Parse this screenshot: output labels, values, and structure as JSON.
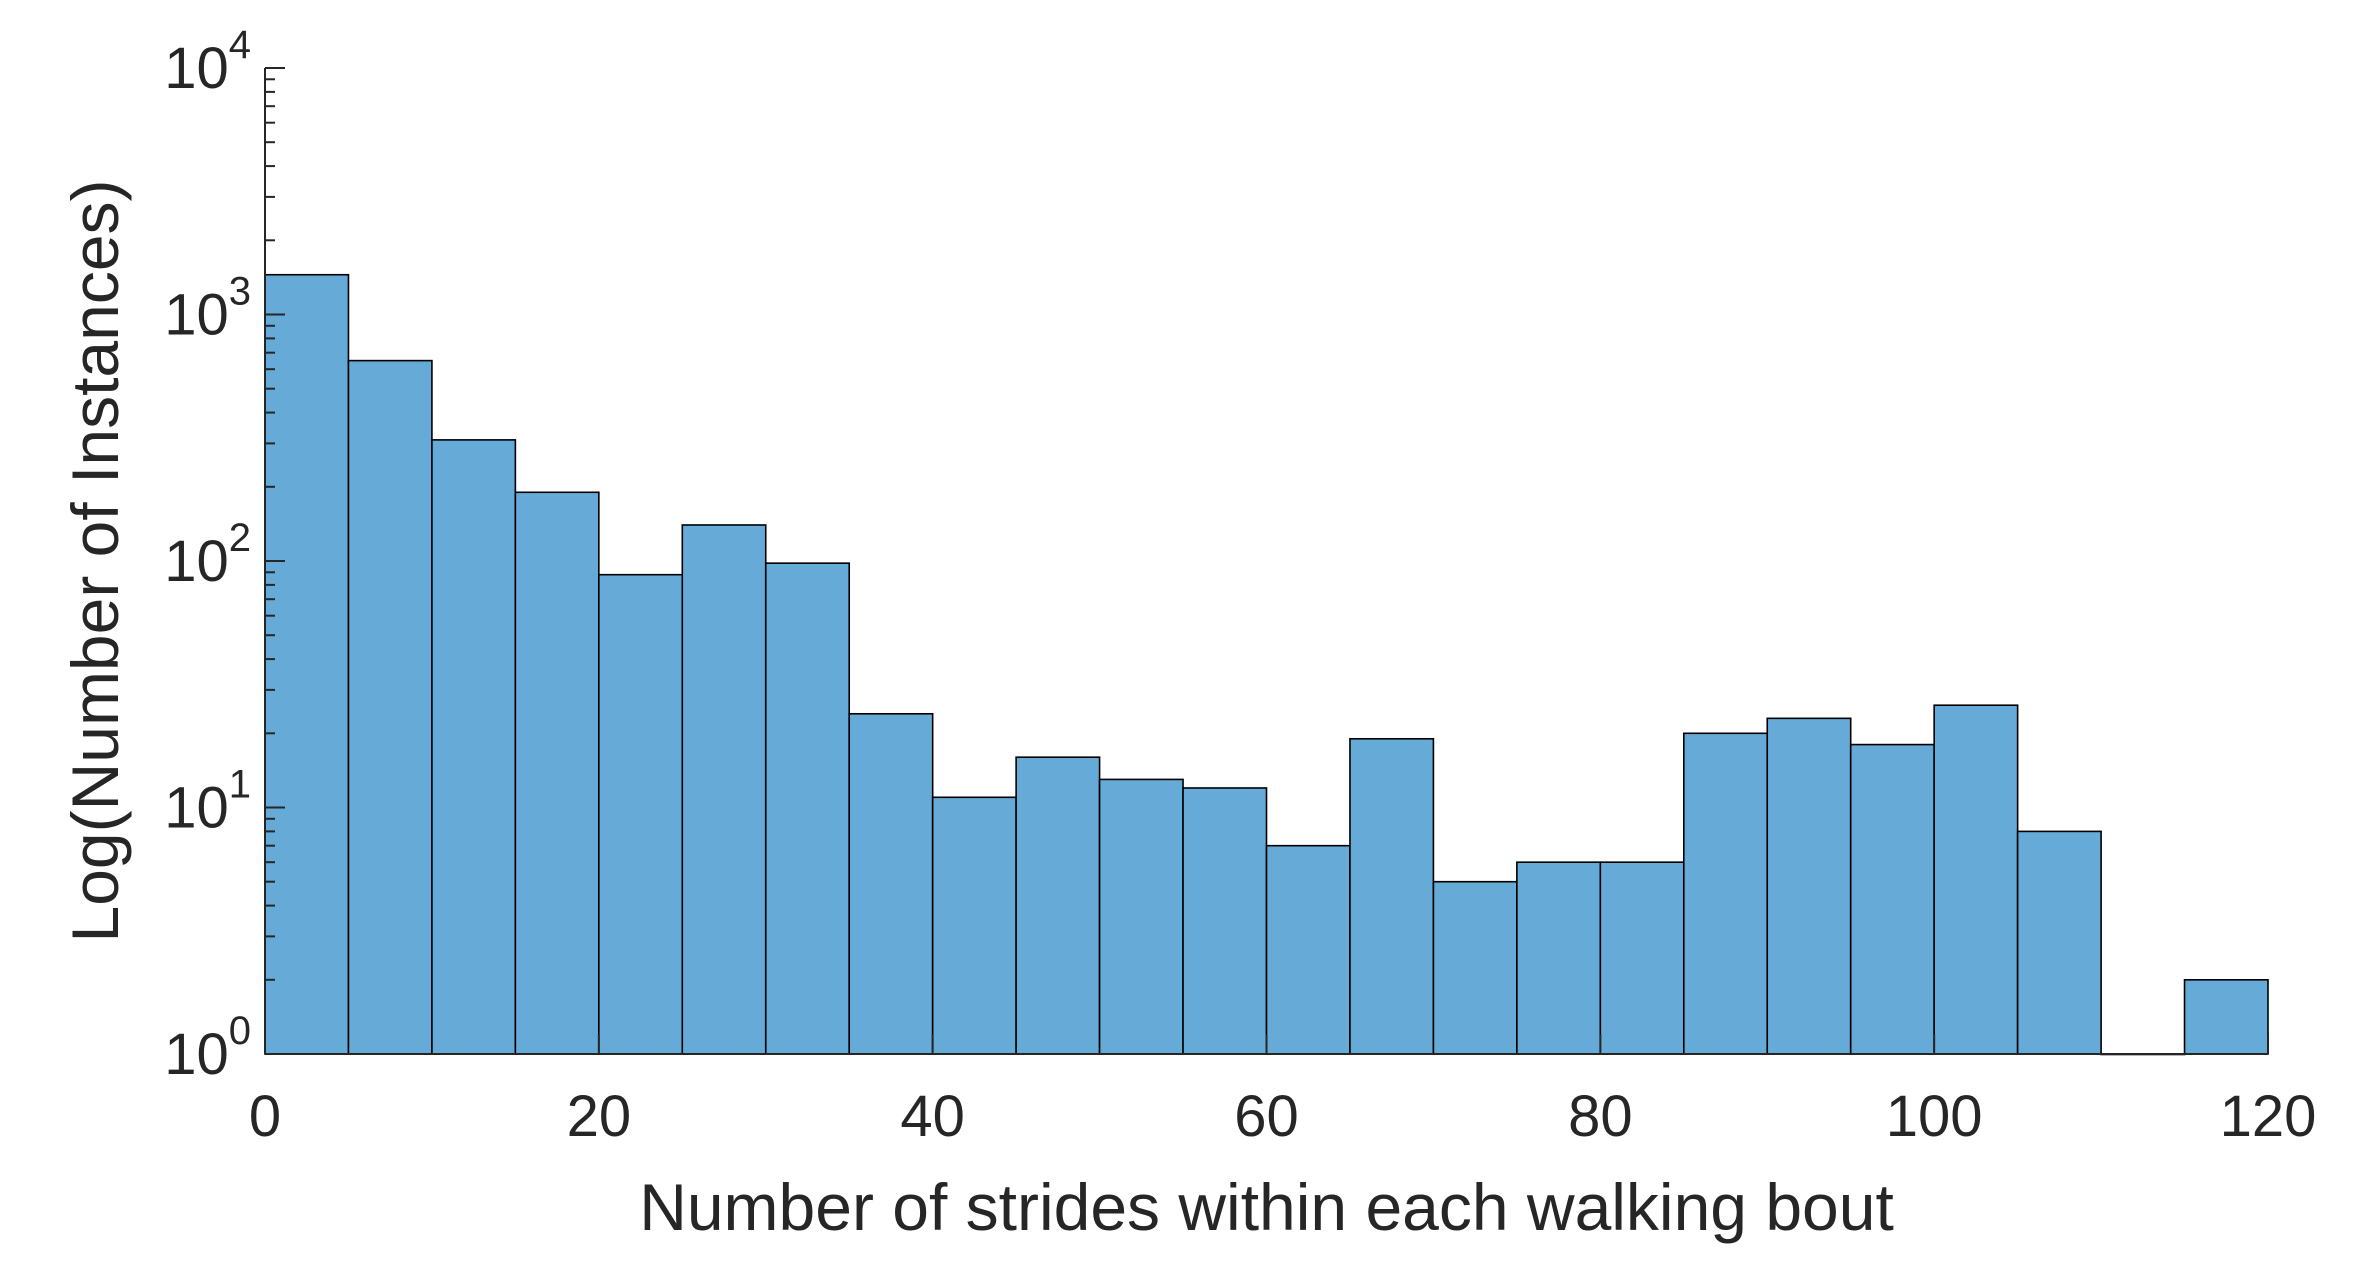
{
  "chart_data": {
    "type": "bar",
    "subtype": "histogram",
    "xlabel": "Number of strides within each walking bout",
    "ylabel": "Log(Number of Instances)",
    "yscale": "log",
    "xlim": [
      0,
      120
    ],
    "ylim": [
      1,
      10000
    ],
    "bin_width": 5,
    "bin_edges": [
      0,
      5,
      10,
      15,
      20,
      25,
      30,
      35,
      40,
      45,
      50,
      55,
      60,
      65,
      70,
      75,
      80,
      85,
      90,
      95,
      100,
      105,
      110,
      115,
      120
    ],
    "values": [
      1450,
      650,
      310,
      190,
      88,
      140,
      98,
      24,
      11,
      16,
      13,
      12,
      7,
      19,
      5,
      6,
      6,
      20,
      23,
      18,
      26,
      8,
      1,
      2
    ],
    "x_ticks": [
      0,
      20,
      40,
      60,
      80,
      100,
      120
    ],
    "x_tick_labels": [
      "0",
      "20",
      "40",
      "60",
      "80",
      "100",
      "120"
    ],
    "y_ticks": [
      1,
      10,
      100,
      1000,
      10000
    ],
    "y_tick_labels": [
      {
        "base": "10",
        "exp": "0"
      },
      {
        "base": "10",
        "exp": "1"
      },
      {
        "base": "10",
        "exp": "2"
      },
      {
        "base": "10",
        "exp": "3"
      },
      {
        "base": "10",
        "exp": "4"
      }
    ],
    "grid": false,
    "legend": "none",
    "bar_color": "#66aad7",
    "edge_color": "#000000"
  }
}
